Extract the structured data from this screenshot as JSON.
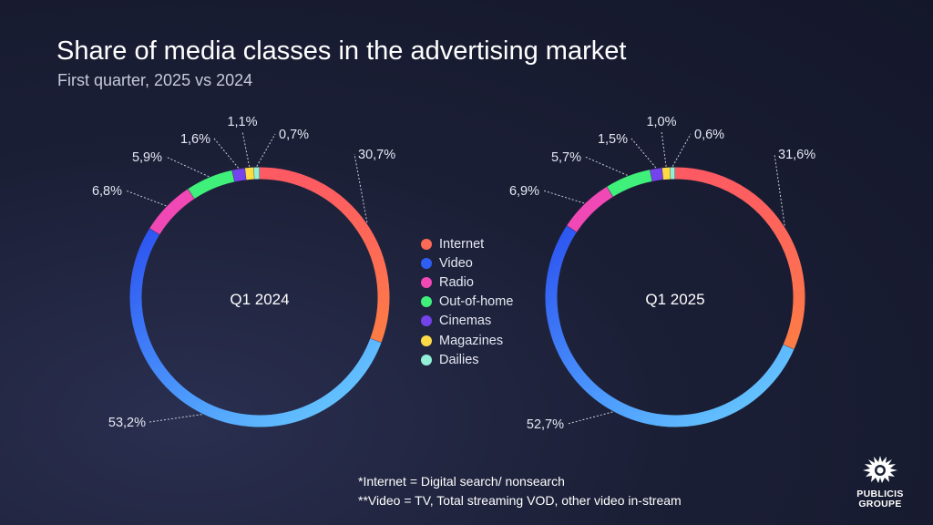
{
  "title": "Share of media classes in the advertising market",
  "subtitle": "First quarter, 2025 vs 2024",
  "colors": {
    "Internet": "#fd6a55",
    "Video": "#2f5ef5",
    "Radio": "#f048b4",
    "Out-of-home": "#3ff07a",
    "Cinemas": "#7443ec",
    "Magazines": "#fddb46",
    "Dailies": "#93f0d8"
  },
  "legend": [
    "Internet",
    "Video",
    "Radio",
    "Out-of-home",
    "Cinemas",
    "Magazines",
    "Dailies"
  ],
  "chart_data": [
    {
      "type": "pie",
      "center_label": "Q1 2024",
      "categories": [
        "Internet",
        "Video",
        "Radio",
        "Out-of-home",
        "Cinemas",
        "Magazines",
        "Dailies"
      ],
      "values": [
        30.7,
        53.2,
        6.8,
        5.9,
        1.6,
        1.1,
        0.7
      ],
      "labels": [
        "30,7%",
        "53,2%",
        "6,8%",
        "5,9%",
        "1,6%",
        "1,1%",
        "0,7%"
      ]
    },
    {
      "type": "pie",
      "center_label": "Q1 2025",
      "categories": [
        "Internet",
        "Video",
        "Radio",
        "Out-of-home",
        "Cinemas",
        "Magazines",
        "Dailies"
      ],
      "values": [
        31.6,
        52.7,
        6.9,
        5.7,
        1.5,
        1.0,
        0.6
      ],
      "labels": [
        "31,6%",
        "52,7%",
        "6,9%",
        "5,7%",
        "1,5%",
        "1,0%",
        "0,6%"
      ]
    }
  ],
  "footnotes": [
    "*Internet = Digital search/ nonsearch",
    "**Video = TV, Total streaming VOD, other video in-stream"
  ],
  "logo": {
    "icon": "publicis-lion-icon",
    "line1": "PUBLICIS",
    "line2": "GROUPE"
  }
}
